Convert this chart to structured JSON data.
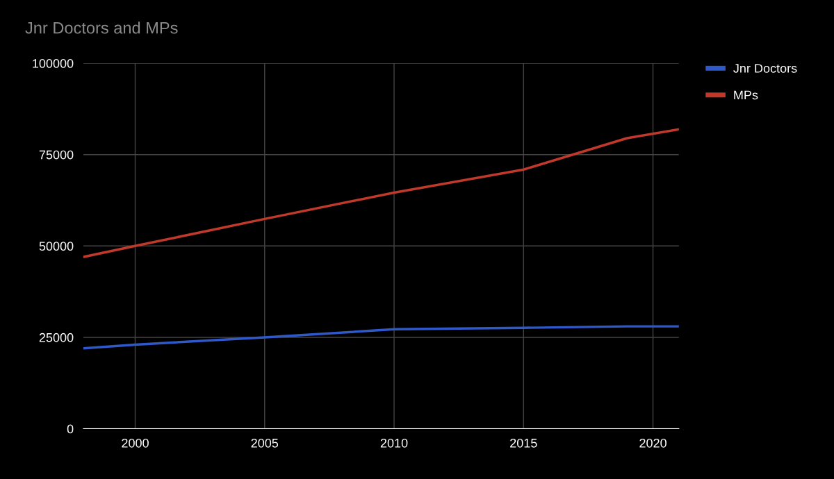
{
  "chart_data": {
    "type": "line",
    "title": "Jnr Doctors and MPs",
    "x": [
      1998,
      2000,
      2005,
      2010,
      2015,
      2019,
      2021
    ],
    "series": [
      {
        "name": "Jnr Doctors",
        "color": "#2f59c8",
        "values": [
          22000,
          23000,
          25000,
          27200,
          27600,
          28000,
          28000
        ]
      },
      {
        "name": "MPs",
        "color": "#c0392b",
        "values": [
          47000,
          50000,
          57400,
          64600,
          70900,
          79500,
          81900
        ]
      }
    ],
    "xlim": [
      1998,
      2021
    ],
    "xticks": [
      2000,
      2005,
      2010,
      2015,
      2020
    ],
    "ylim": [
      0,
      100000
    ],
    "yticks": [
      0,
      25000,
      50000,
      75000,
      100000
    ],
    "grid": true,
    "legend": "top right",
    "marker": "none",
    "line_style": "solid"
  }
}
